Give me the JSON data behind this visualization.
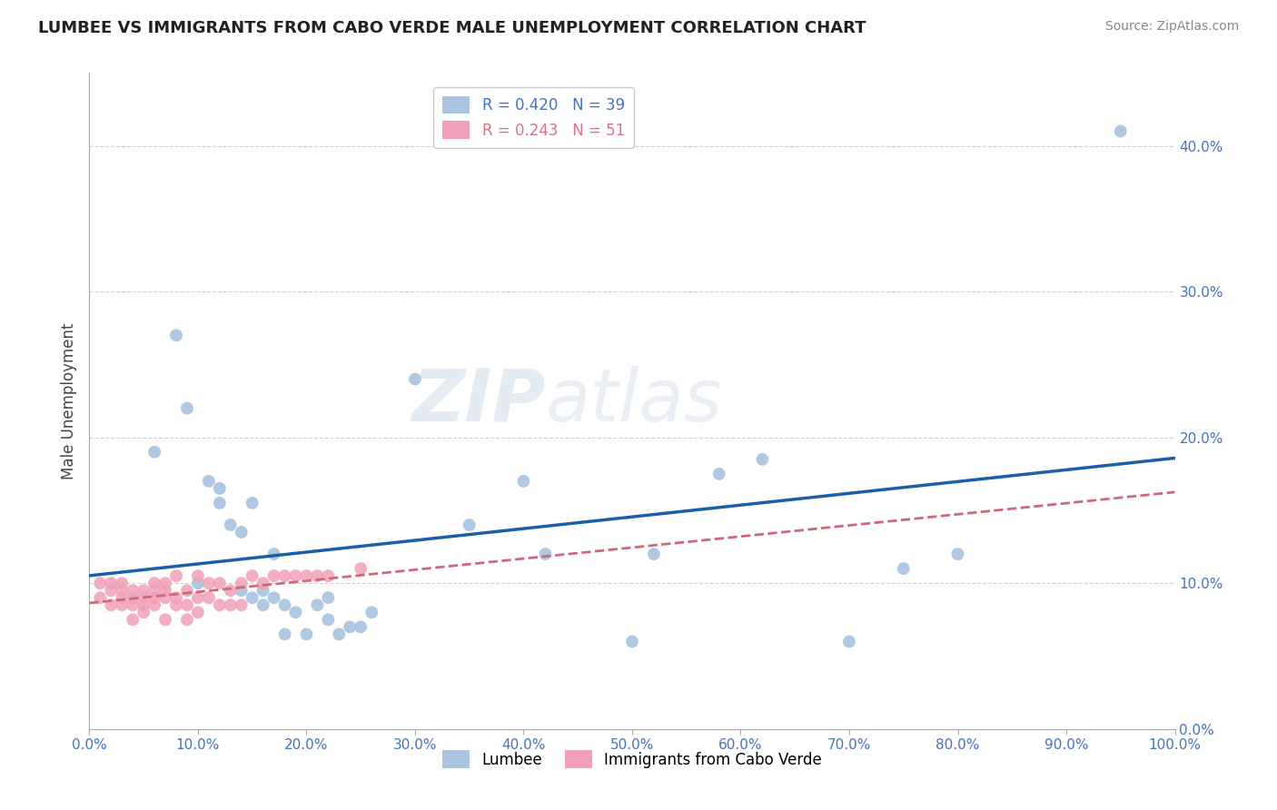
{
  "title": "LUMBEE VS IMMIGRANTS FROM CABO VERDE MALE UNEMPLOYMENT CORRELATION CHART",
  "source_text": "Source: ZipAtlas.com",
  "ylabel": "Male Unemployment",
  "watermark": "ZIPatlas",
  "legend_label1": "Lumbee",
  "legend_label2": "Immigrants from Cabo Verde",
  "R1": 0.42,
  "N1": 39,
  "R2": 0.243,
  "N2": 51,
  "color_lumbee": "#a8c4e0",
  "color_cabo": "#f0a0b8",
  "color_lumbee_line": "#1a5faa",
  "color_cabo_line": "#d06878",
  "xlim": [
    0.0,
    1.0
  ],
  "ylim": [
    0.0,
    0.45
  ],
  "yticks": [
    0.0,
    0.1,
    0.2,
    0.3,
    0.4
  ],
  "xticks": [
    0.0,
    0.1,
    0.2,
    0.3,
    0.4,
    0.5,
    0.6,
    0.7,
    0.8,
    0.9,
    1.0
  ],
  "lumbee_x": [
    0.06,
    0.08,
    0.09,
    0.1,
    0.11,
    0.12,
    0.12,
    0.13,
    0.14,
    0.14,
    0.15,
    0.15,
    0.16,
    0.16,
    0.17,
    0.17,
    0.18,
    0.18,
    0.19,
    0.2,
    0.21,
    0.22,
    0.22,
    0.23,
    0.24,
    0.25,
    0.26,
    0.3,
    0.35,
    0.4,
    0.42,
    0.5,
    0.52,
    0.58,
    0.62,
    0.7,
    0.75,
    0.8,
    0.95
  ],
  "lumbee_y": [
    0.19,
    0.27,
    0.22,
    0.1,
    0.17,
    0.165,
    0.155,
    0.14,
    0.095,
    0.135,
    0.155,
    0.09,
    0.085,
    0.095,
    0.12,
    0.09,
    0.085,
    0.065,
    0.08,
    0.065,
    0.085,
    0.09,
    0.075,
    0.065,
    0.07,
    0.07,
    0.08,
    0.24,
    0.14,
    0.17,
    0.12,
    0.06,
    0.12,
    0.175,
    0.185,
    0.06,
    0.11,
    0.12,
    0.41
  ],
  "cabo_x": [
    0.01,
    0.01,
    0.02,
    0.02,
    0.02,
    0.03,
    0.03,
    0.03,
    0.03,
    0.04,
    0.04,
    0.04,
    0.04,
    0.05,
    0.05,
    0.05,
    0.05,
    0.06,
    0.06,
    0.06,
    0.06,
    0.07,
    0.07,
    0.07,
    0.07,
    0.08,
    0.08,
    0.08,
    0.09,
    0.09,
    0.09,
    0.1,
    0.1,
    0.1,
    0.11,
    0.11,
    0.12,
    0.12,
    0.13,
    0.13,
    0.14,
    0.14,
    0.15,
    0.16,
    0.17,
    0.18,
    0.19,
    0.2,
    0.21,
    0.22,
    0.25
  ],
  "cabo_y": [
    0.1,
    0.09,
    0.1,
    0.095,
    0.085,
    0.1,
    0.095,
    0.09,
    0.085,
    0.095,
    0.09,
    0.085,
    0.075,
    0.095,
    0.09,
    0.085,
    0.08,
    0.1,
    0.095,
    0.09,
    0.085,
    0.1,
    0.095,
    0.09,
    0.075,
    0.105,
    0.09,
    0.085,
    0.095,
    0.085,
    0.075,
    0.105,
    0.09,
    0.08,
    0.1,
    0.09,
    0.1,
    0.085,
    0.095,
    0.085,
    0.1,
    0.085,
    0.105,
    0.1,
    0.105,
    0.105,
    0.105,
    0.105,
    0.105,
    0.105,
    0.11
  ]
}
